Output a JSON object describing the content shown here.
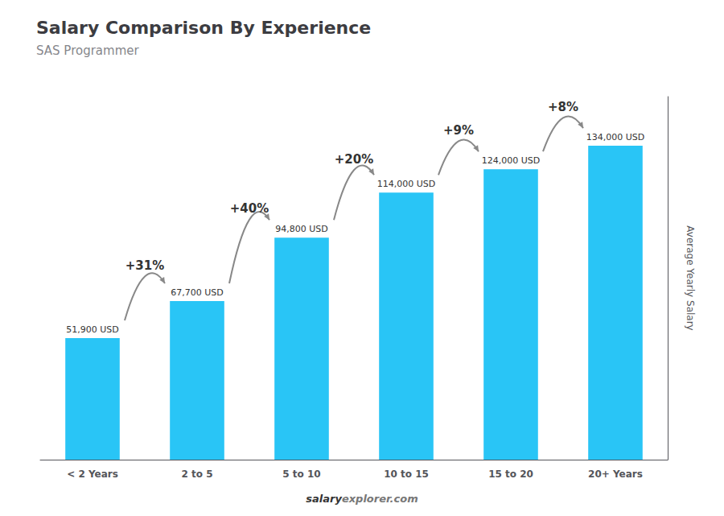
{
  "chart_data": {
    "type": "bar",
    "title": "Salary Comparison By Experience",
    "subtitle": "SAS Programmer",
    "categories": [
      "< 2 Years",
      "2 to 5",
      "5 to 10",
      "10 to 15",
      "15 to 20",
      "20+ Years"
    ],
    "values": [
      51900,
      67700,
      94800,
      114000,
      124000,
      134000
    ],
    "value_labels": [
      "51,900 USD",
      "67,700 USD",
      "94,800 USD",
      "114,000 USD",
      "124,000 USD",
      "134,000 USD"
    ],
    "data_labels": true,
    "color": "#29c5f6",
    "ylabel": "Average Yearly Salary",
    "ylim": [
      0,
      155000
    ],
    "tick_labels": "x",
    "grid": false,
    "annotations": [
      "+31%",
      "+40%",
      "+20%",
      "+9%",
      "+8%"
    ],
    "footer": [
      "salary",
      "explorer.com"
    ]
  }
}
